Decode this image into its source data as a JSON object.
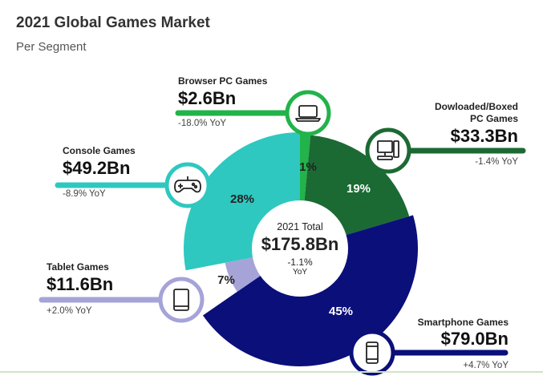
{
  "header": {
    "title": "2021 Global Games Market",
    "subtitle": "Per Segment"
  },
  "center": {
    "label": "2021 Total",
    "value": "$175.8Bn",
    "change": "-1.1%",
    "change_unit": "YoY"
  },
  "chart_data": {
    "type": "pie",
    "title": "2021 Global Games Market",
    "subtitle": "Per Segment",
    "total": "$175.8Bn",
    "total_change": "-1.1% YoY",
    "segments": [
      {
        "name": "Browser PC Games",
        "value_label": "$2.6Bn",
        "value": 2.6,
        "percent": 1,
        "percent_label": "1%",
        "yoy": "-18.0% YoY",
        "color": "#22b34a",
        "icon": "laptop-icon"
      },
      {
        "name": "Dowloaded/Boxed PC Games",
        "name_lines": [
          "Dowloaded/Boxed",
          "PC Games"
        ],
        "value_label": "$33.3Bn",
        "value": 33.3,
        "percent": 19,
        "percent_label": "19%",
        "yoy": "-1.4% YoY",
        "color": "#1b6a33",
        "icon": "desktop-computer-icon"
      },
      {
        "name": "Smartphone Games",
        "value_label": "$79.0Bn",
        "value": 79.0,
        "percent": 45,
        "percent_label": "45%",
        "yoy": "+4.7% YoY",
        "color": "#0b0f7a",
        "icon": "smartphone-icon"
      },
      {
        "name": "Tablet Games",
        "value_label": "$11.6Bn",
        "value": 11.6,
        "percent": 7,
        "percent_label": "7%",
        "yoy": "+2.0% YoY",
        "color": "#a6a3d8",
        "icon": "tablet-icon"
      },
      {
        "name": "Console Games",
        "value_label": "$49.2Bn",
        "value": 49.2,
        "percent": 28,
        "percent_label": "28%",
        "yoy": "-8.9% YoY",
        "color": "#2ec8c0",
        "icon": "gamepad-icon"
      }
    ]
  }
}
